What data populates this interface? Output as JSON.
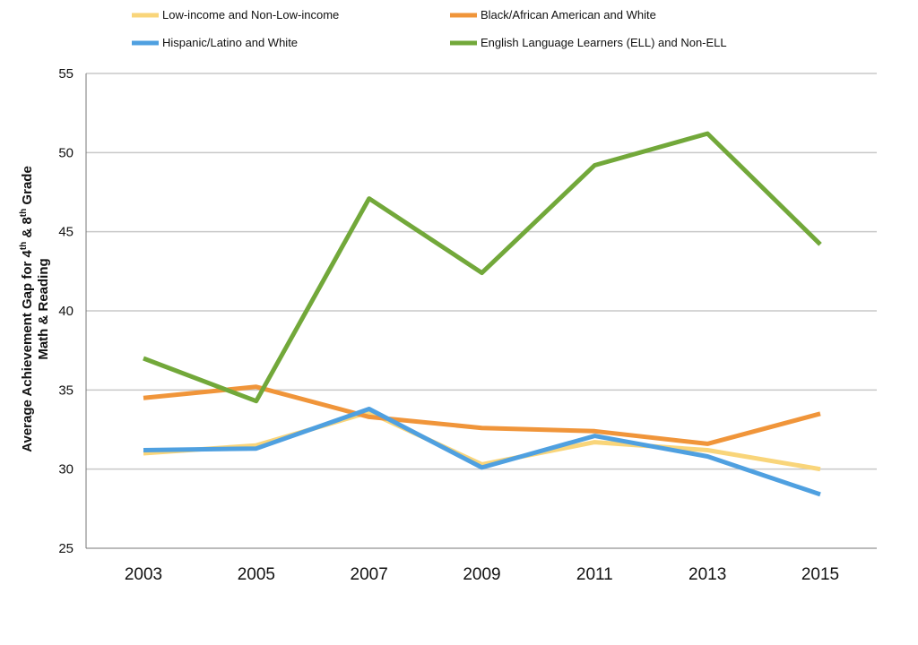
{
  "chart_data": {
    "type": "line",
    "title": "",
    "xlabel": "",
    "ylabel": {
      "line1_prefix": "Average Achievement Gap for 4",
      "line1_sup1": "th",
      "line1_mid": " & 8",
      "line1_sup2": "th",
      "line1_suffix": " Grade",
      "line2": "Math & Reading"
    },
    "ylim": [
      25,
      55
    ],
    "yticks": [
      "25",
      "30",
      "35",
      "40",
      "45",
      "50",
      "55"
    ],
    "categories": [
      "2003",
      "2005",
      "2007",
      "2009",
      "2011",
      "2013",
      "2015"
    ],
    "grid": true,
    "legend_position": "top",
    "series": [
      {
        "name": "Low-income and Non-Low-income",
        "color": "#F9D57A",
        "values": [
          31.0,
          31.5,
          33.6,
          30.3,
          31.7,
          31.2,
          30.0
        ]
      },
      {
        "name": "Black/African American and White",
        "color": "#F0953A",
        "values": [
          34.5,
          35.2,
          33.3,
          32.6,
          32.4,
          31.6,
          33.5
        ]
      },
      {
        "name": "Hispanic/Latino and White",
        "color": "#4FA0E0",
        "values": [
          31.2,
          31.3,
          33.8,
          30.1,
          32.1,
          30.8,
          28.4
        ]
      },
      {
        "name": "English Language Learners (ELL) and Non-ELL",
        "color": "#72A83A",
        "values": [
          37.0,
          34.3,
          47.1,
          42.4,
          49.2,
          51.2,
          44.2
        ]
      }
    ]
  }
}
